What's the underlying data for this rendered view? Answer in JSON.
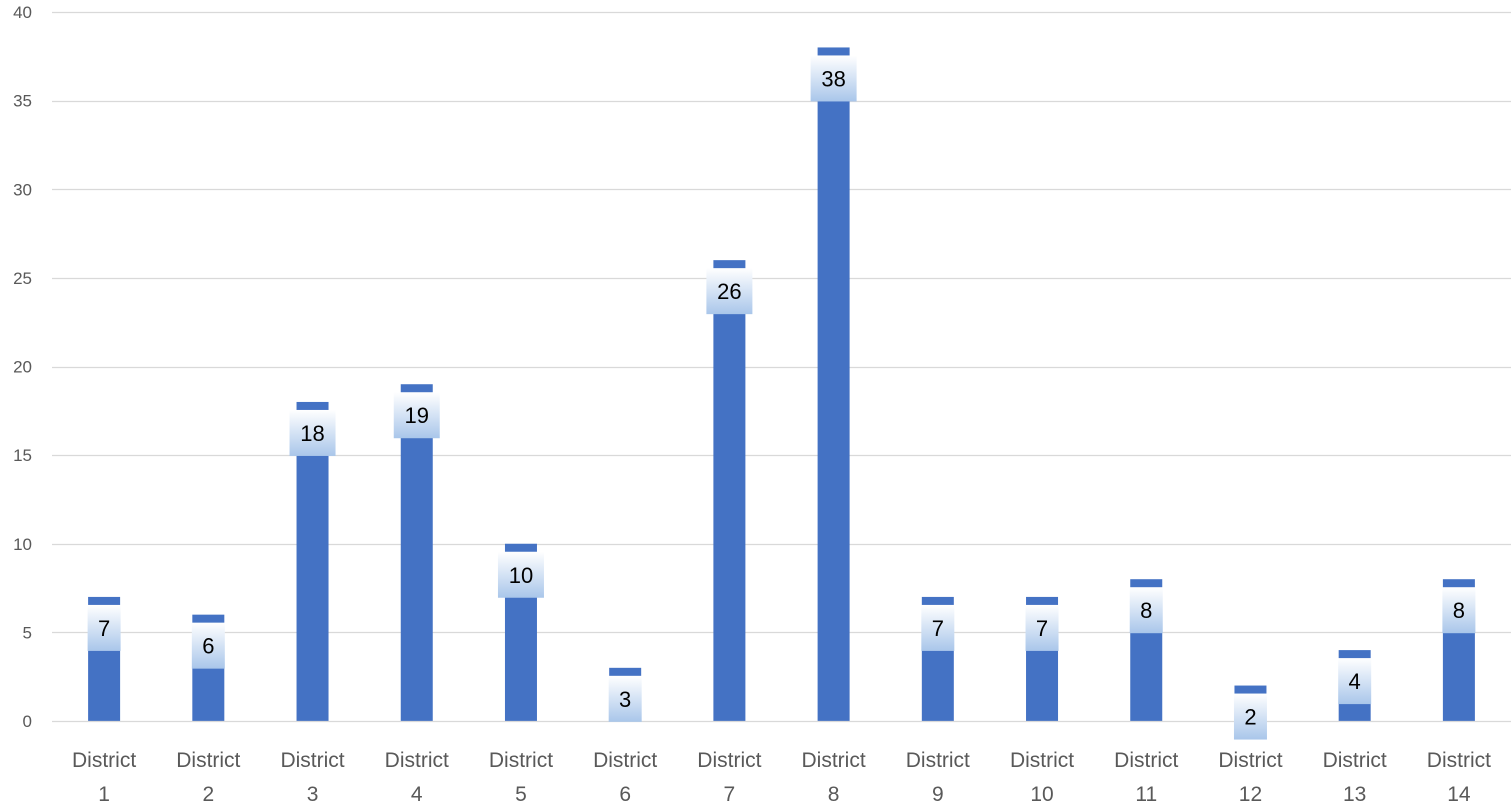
{
  "chart_data": {
    "type": "bar",
    "title": "",
    "xlabel": "",
    "ylabel": "",
    "categories": [
      "District 1",
      "District 2",
      "District 3",
      "District 4",
      "District 5",
      "District 6",
      "District 7",
      "District 8",
      "District 9",
      "District 10",
      "District 11",
      "District 12",
      "District 13",
      "District 14"
    ],
    "category_lines": [
      [
        "District",
        "1"
      ],
      [
        "District",
        "2"
      ],
      [
        "District",
        "3"
      ],
      [
        "District",
        "4"
      ],
      [
        "District",
        "5"
      ],
      [
        "District",
        "6"
      ],
      [
        "District",
        "7"
      ],
      [
        "District",
        "8"
      ],
      [
        "District",
        "9"
      ],
      [
        "District",
        "10"
      ],
      [
        "District",
        "11"
      ],
      [
        "District",
        "12"
      ],
      [
        "District",
        "13"
      ],
      [
        "District",
        "14"
      ]
    ],
    "values": [
      7,
      6,
      18,
      19,
      10,
      3,
      26,
      38,
      7,
      7,
      8,
      2,
      4,
      8
    ],
    "data_labels": [
      "7",
      "6",
      "18",
      "19",
      "10",
      "3",
      "26",
      "38",
      "7",
      "7",
      "8",
      "2",
      "4",
      "8"
    ],
    "ylim": [
      0,
      40
    ],
    "yticks": [
      0,
      5,
      10,
      15,
      20,
      25,
      30,
      35,
      40
    ],
    "ytick_labels": [
      "0",
      "5",
      "10",
      "15",
      "20",
      "25",
      "30",
      "35",
      "40"
    ],
    "grid": true,
    "legend": "none",
    "colors": {
      "bar": "#4472C4",
      "grid": "#D9D9D9",
      "axis": "#D9D9D9",
      "tick_text": "#595959",
      "label_box_top": "#FFFFFF",
      "label_box_bottom": "#A9C6EA",
      "label_text": "#000000"
    }
  }
}
